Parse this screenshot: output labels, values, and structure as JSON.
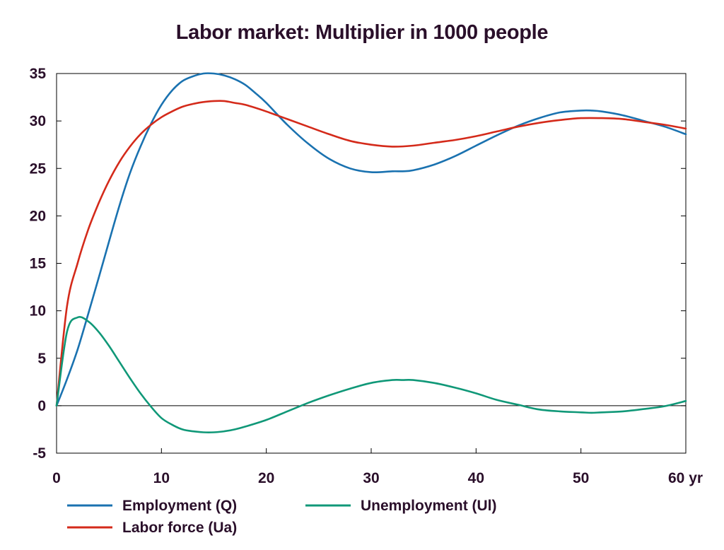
{
  "chart_data": {
    "type": "line",
    "title": "Labor market: Multiplier in 1000 people",
    "xlim": [
      0,
      60
    ],
    "ylim": [
      -5,
      35
    ],
    "x_ticks": [
      0,
      10,
      20,
      30,
      40,
      50,
      60
    ],
    "x_tick_labels": [
      "0",
      "10",
      "20",
      "30",
      "40",
      "50",
      "60 yr"
    ],
    "y_ticks": [
      -5,
      0,
      5,
      10,
      15,
      20,
      25,
      30,
      35
    ],
    "y_tick_labels": [
      "-5",
      "0",
      "5",
      "10",
      "15",
      "20",
      "25",
      "30",
      "35"
    ],
    "grid": false,
    "zero_line": true,
    "legend": "bottom",
    "series": [
      {
        "name": "Employment (Q)",
        "color": "#1a72b0",
        "x": [
          0,
          1,
          2,
          3,
          4,
          5,
          6,
          7,
          8,
          9,
          10,
          11,
          12,
          13,
          14,
          15,
          16,
          17,
          18,
          19,
          20,
          22,
          24,
          26,
          28,
          30,
          32,
          33,
          34,
          36,
          38,
          40,
          42,
          44,
          46,
          48,
          50,
          51,
          52,
          54,
          56,
          58,
          60
        ],
        "y": [
          0,
          2.8,
          5.9,
          9.6,
          13.4,
          17.3,
          21.1,
          24.5,
          27.3,
          29.7,
          31.7,
          33.2,
          34.2,
          34.7,
          35.0,
          35.0,
          34.8,
          34.4,
          33.8,
          32.9,
          31.9,
          29.6,
          27.6,
          26.0,
          25.0,
          24.6,
          24.7,
          24.7,
          24.8,
          25.4,
          26.3,
          27.4,
          28.5,
          29.5,
          30.3,
          30.9,
          31.1,
          31.1,
          31.0,
          30.6,
          30.0,
          29.4,
          28.6
        ]
      },
      {
        "name": "Labor force (Ua)",
        "color": "#d42a1a",
        "x": [
          0,
          1,
          2,
          3,
          4,
          5,
          6,
          7,
          8,
          9,
          10,
          11,
          12,
          13,
          14,
          15,
          16,
          17,
          18,
          20,
          22,
          24,
          26,
          28,
          30,
          32,
          34,
          36,
          38,
          40,
          42,
          44,
          46,
          48,
          50,
          52,
          54,
          56,
          58,
          60
        ],
        "y": [
          0,
          10.5,
          15.0,
          18.5,
          21.3,
          23.7,
          25.7,
          27.3,
          28.6,
          29.6,
          30.4,
          31.0,
          31.5,
          31.8,
          32.0,
          32.1,
          32.1,
          31.9,
          31.7,
          31.0,
          30.2,
          29.4,
          28.6,
          27.9,
          27.5,
          27.3,
          27.4,
          27.7,
          28.0,
          28.4,
          28.9,
          29.4,
          29.8,
          30.1,
          30.3,
          30.3,
          30.2,
          29.9,
          29.6,
          29.2
        ]
      },
      {
        "name": "Unemployment (Ul)",
        "color": "#109878",
        "x": [
          0,
          1,
          2,
          3,
          4,
          5,
          6,
          7,
          8,
          9,
          10,
          11,
          12,
          13,
          14,
          15,
          16,
          17,
          18,
          20,
          22,
          24,
          26,
          28,
          30,
          32,
          33,
          34,
          36,
          38,
          40,
          42,
          44,
          46,
          48,
          50,
          51,
          52,
          54,
          56,
          58,
          60
        ],
        "y": [
          0,
          7.8,
          9.3,
          8.9,
          7.8,
          6.3,
          4.6,
          2.9,
          1.3,
          -0.1,
          -1.3,
          -2.0,
          -2.5,
          -2.7,
          -2.8,
          -2.8,
          -2.7,
          -2.5,
          -2.2,
          -1.5,
          -0.6,
          0.3,
          1.1,
          1.8,
          2.4,
          2.7,
          2.7,
          2.7,
          2.4,
          1.9,
          1.3,
          0.6,
          0.1,
          -0.4,
          -0.6,
          -0.7,
          -0.75,
          -0.7,
          -0.6,
          -0.35,
          -0.05,
          0.5
        ]
      }
    ]
  }
}
